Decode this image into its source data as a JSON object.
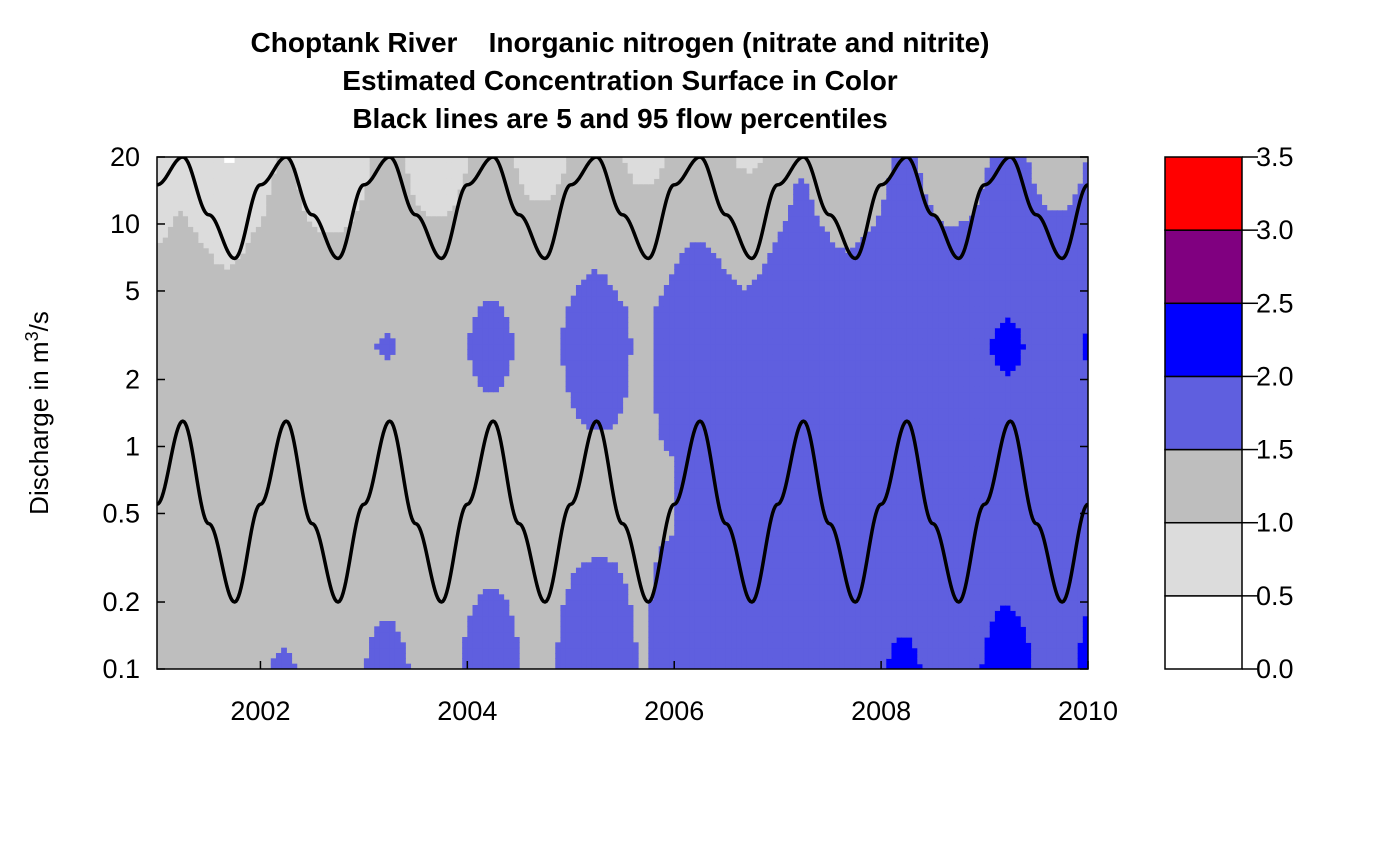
{
  "chart_data": {
    "type": "heatmap",
    "title_lines": [
      "Choptank River    Inorganic nitrogen (nitrate and nitrite)",
      "Estimated Concentration Surface in Color",
      "Black lines are 5 and 95 flow percentiles"
    ],
    "ylabel_prefix": "Discharge in m",
    "ylabel_sup": "3",
    "ylabel_suffix": "/s",
    "xlabel": "",
    "x_range": [
      2001.0,
      2010.0
    ],
    "y_range": [
      0.1,
      20
    ],
    "y_scale": "log",
    "x_ticks": [
      "2002",
      "2004",
      "2006",
      "2008",
      "2010"
    ],
    "y_ticks": [
      "0.1",
      "0.2",
      "0.5",
      "1",
      "2",
      "5",
      "10",
      "20"
    ],
    "color_scale": {
      "breaks": [
        "0.0",
        "0.5",
        "1.0",
        "1.5",
        "2.0",
        "2.5",
        "3.0",
        "3.5"
      ],
      "colors": [
        "#ffffff",
        "#dcdcdc",
        "#bebebe",
        "#5f5fdf",
        "#0000ff",
        "#800080",
        "#ff0000"
      ]
    },
    "percentile_5": {
      "name": "5 flow percentile",
      "x": [
        2001.0,
        2001.25,
        2001.5,
        2001.75,
        2002.0,
        2002.25,
        2002.5,
        2002.75,
        2003.0,
        2003.25,
        2003.5,
        2003.75,
        2004.0,
        2004.25,
        2004.5,
        2004.75,
        2005.0,
        2005.25,
        2005.5,
        2005.75,
        2006.0,
        2006.25,
        2006.5,
        2006.75,
        2007.0,
        2007.25,
        2007.5,
        2007.75,
        2008.0,
        2008.25,
        2008.5,
        2008.75,
        2009.0,
        2009.25,
        2009.5,
        2009.75,
        2010.0
      ],
      "y": [
        0.55,
        1.3,
        0.45,
        0.2,
        0.55,
        1.3,
        0.45,
        0.2,
        0.55,
        1.3,
        0.45,
        0.2,
        0.55,
        1.3,
        0.45,
        0.2,
        0.55,
        1.3,
        0.45,
        0.2,
        0.55,
        1.3,
        0.45,
        0.2,
        0.55,
        1.3,
        0.45,
        0.2,
        0.55,
        1.3,
        0.45,
        0.2,
        0.55,
        1.3,
        0.45,
        0.2,
        0.55
      ]
    },
    "percentile_95": {
      "name": "95 flow percentile",
      "x": [
        2001.0,
        2001.25,
        2001.5,
        2001.75,
        2002.0,
        2002.25,
        2002.5,
        2002.75,
        2003.0,
        2003.25,
        2003.5,
        2003.75,
        2004.0,
        2004.25,
        2004.5,
        2004.75,
        2005.0,
        2005.25,
        2005.5,
        2005.75,
        2006.0,
        2006.25,
        2006.5,
        2006.75,
        2007.0,
        2007.25,
        2007.5,
        2007.75,
        2008.0,
        2008.25,
        2008.5,
        2008.75,
        2009.0,
        2009.25,
        2009.5,
        2009.75,
        2010.0
      ],
      "y": [
        15,
        20,
        11,
        7,
        15,
        20,
        11,
        7,
        15,
        20,
        11,
        7,
        15,
        20,
        11,
        7,
        15,
        20,
        11,
        7,
        15,
        20,
        11,
        7,
        15,
        20,
        11,
        7,
        15,
        20,
        11,
        7,
        15,
        20,
        11,
        7,
        15
      ]
    },
    "grid": false
  }
}
